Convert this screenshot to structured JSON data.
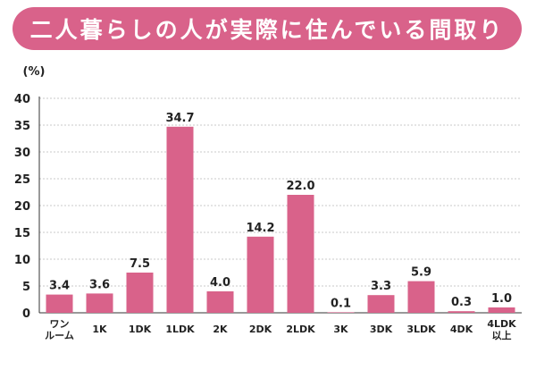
{
  "title": "二人暮らしの人が実際に住んでいる間取り",
  "colors": {
    "banner": "#d9628a",
    "bar": "#d9628a",
    "grid": "#c8c8c8",
    "axis": "#333333"
  },
  "chart_data": {
    "type": "bar",
    "title": "二人暮らしの人が実際に住んでいる間取り",
    "xlabel": "",
    "ylabel": "",
    "unit": "(%)",
    "categories": [
      [
        "ワン",
        "ルーム"
      ],
      [
        "1K"
      ],
      [
        "1DK"
      ],
      [
        "1LDK"
      ],
      [
        "2K"
      ],
      [
        "2DK"
      ],
      [
        "2LDK"
      ],
      [
        "3K"
      ],
      [
        "3DK"
      ],
      [
        "3LDK"
      ],
      [
        "4DK"
      ],
      [
        "4LDK",
        "以上"
      ]
    ],
    "values": [
      3.4,
      3.6,
      7.5,
      34.7,
      4.0,
      14.2,
      22.0,
      0.1,
      3.3,
      5.9,
      0.3,
      1.0
    ],
    "value_labels": [
      "3.4",
      "3.6",
      "7.5",
      "34.7",
      "4.0",
      "14.2",
      "22.0",
      "0.1",
      "3.3",
      "5.9",
      "0.3",
      "1.0"
    ],
    "ylim": [
      0,
      40
    ],
    "yticks": [
      0,
      5,
      10,
      15,
      20,
      25,
      30,
      35,
      40
    ],
    "grid": true,
    "legend": "none"
  }
}
